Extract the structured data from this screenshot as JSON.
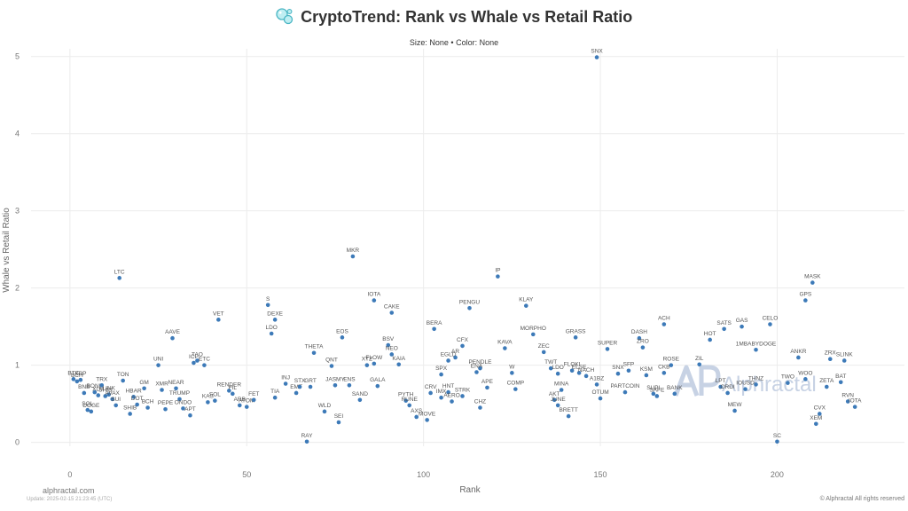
{
  "header": {
    "title": "CryptoTrend: Rank vs Whale vs Retail Ratio",
    "subtitle": "Size: None • Color: None"
  },
  "footer": {
    "left": "alphractal.com",
    "left_small": "Update: 2025-02-15 21:23:45 (UTC)",
    "right": "© Alphractal All rights reserved"
  },
  "watermark": {
    "text": "Alphractal"
  },
  "colors": {
    "point": "#3d7ab8",
    "grid": "#ececec",
    "watermark": "#c7d2e4"
  },
  "chart_data": {
    "type": "scatter",
    "title": "CryptoTrend: Rank vs Whale vs Retail Ratio",
    "subtitle": "Size: None • Color: None",
    "xlabel": "Rank",
    "ylabel": "Whale vs Retail Ratio",
    "xlim": [
      -11,
      236
    ],
    "ylim": [
      -0.05,
      5.1
    ],
    "xticks": [
      0,
      50,
      100,
      150,
      200
    ],
    "yticks": [
      0,
      1,
      2,
      3,
      4,
      5
    ],
    "grid": true,
    "points": [
      {
        "label": "BTC",
        "x": 1,
        "y": 0.82
      },
      {
        "label": "BCH",
        "x": 2,
        "y": 0.79
      },
      {
        "label": "XRP",
        "x": 3,
        "y": 0.81
      },
      {
        "label": "BNB",
        "x": 4,
        "y": 0.64
      },
      {
        "label": "SOL",
        "x": 5,
        "y": 0.42
      },
      {
        "label": "DOGE",
        "x": 6,
        "y": 0.4
      },
      {
        "label": "BONK",
        "x": 7,
        "y": 0.65
      },
      {
        "label": "XLM",
        "x": 8,
        "y": 0.61
      },
      {
        "label": "TRX",
        "x": 9,
        "y": 0.74
      },
      {
        "label": "SHIB",
        "x": 10,
        "y": 0.6
      },
      {
        "label": "LINK",
        "x": 11,
        "y": 0.62
      },
      {
        "label": "AVAX",
        "x": 12,
        "y": 0.56
      },
      {
        "label": "SUI",
        "x": 13,
        "y": 0.48
      },
      {
        "label": "LTC",
        "x": 14,
        "y": 2.13
      },
      {
        "label": "TON",
        "x": 15,
        "y": 0.8
      },
      {
        "label": "SHIB",
        "x": 17,
        "y": 0.37
      },
      {
        "label": "HBAR",
        "x": 18,
        "y": 0.59
      },
      {
        "label": "DOT",
        "x": 19,
        "y": 0.49
      },
      {
        "label": "GM",
        "x": 21,
        "y": 0.7
      },
      {
        "label": "BCH",
        "x": 22,
        "y": 0.45
      },
      {
        "label": "UNI",
        "x": 25,
        "y": 1.0
      },
      {
        "label": "XMR",
        "x": 26,
        "y": 0.68
      },
      {
        "label": "PEPE",
        "x": 27,
        "y": 0.43
      },
      {
        "label": "AAVE",
        "x": 29,
        "y": 1.35
      },
      {
        "label": "NEAR",
        "x": 30,
        "y": 0.7
      },
      {
        "label": "TRUMP",
        "x": 31,
        "y": 0.56
      },
      {
        "label": "ONDO",
        "x": 32,
        "y": 0.44
      },
      {
        "label": "APT",
        "x": 34,
        "y": 0.35
      },
      {
        "label": "ICP",
        "x": 35,
        "y": 1.03
      },
      {
        "label": "TAO",
        "x": 36,
        "y": 1.06
      },
      {
        "label": "ETC",
        "x": 38,
        "y": 1.0
      },
      {
        "label": "KAS",
        "x": 39,
        "y": 0.52
      },
      {
        "label": "SOL",
        "x": 41,
        "y": 0.54
      },
      {
        "label": "VET",
        "x": 42,
        "y": 1.59
      },
      {
        "label": "RENDER",
        "x": 45,
        "y": 0.67
      },
      {
        "label": "FIL",
        "x": 46,
        "y": 0.63
      },
      {
        "label": "ARB",
        "x": 48,
        "y": 0.48
      },
      {
        "label": "ATOM",
        "x": 50,
        "y": 0.46
      },
      {
        "label": "FET",
        "x": 52,
        "y": 0.55
      },
      {
        "label": "S",
        "x": 56,
        "y": 1.78
      },
      {
        "label": "LDO",
        "x": 57,
        "y": 1.41
      },
      {
        "label": "DEXE",
        "x": 58,
        "y": 1.59
      },
      {
        "label": "TIA",
        "x": 58,
        "y": 0.58
      },
      {
        "label": "INJ",
        "x": 61,
        "y": 0.76
      },
      {
        "label": "EMT",
        "x": 64,
        "y": 0.64
      },
      {
        "label": "STX",
        "x": 65,
        "y": 0.72
      },
      {
        "label": "GRT",
        "x": 68,
        "y": 0.72
      },
      {
        "label": "RAY",
        "x": 67,
        "y": 0.01
      },
      {
        "label": "THETA",
        "x": 69,
        "y": 1.16
      },
      {
        "label": "WLD",
        "x": 72,
        "y": 0.4
      },
      {
        "label": "QNT",
        "x": 74,
        "y": 0.99
      },
      {
        "label": "JASMY",
        "x": 75,
        "y": 0.74
      },
      {
        "label": "ENS",
        "x": 79,
        "y": 0.74
      },
      {
        "label": "SEI",
        "x": 76,
        "y": 0.26
      },
      {
        "label": "EOS",
        "x": 77,
        "y": 1.36
      },
      {
        "label": "MKR",
        "x": 80,
        "y": 2.41
      },
      {
        "label": "SAND",
        "x": 82,
        "y": 0.55
      },
      {
        "label": "XTZ",
        "x": 84,
        "y": 1.0
      },
      {
        "label": "FLOW",
        "x": 86,
        "y": 1.02
      },
      {
        "label": "GALA",
        "x": 87,
        "y": 0.73
      },
      {
        "label": "IOTA",
        "x": 86,
        "y": 1.84
      },
      {
        "label": "CAKE",
        "x": 91,
        "y": 1.68
      },
      {
        "label": "BSV",
        "x": 90,
        "y": 1.26
      },
      {
        "label": "NEO",
        "x": 91,
        "y": 1.14
      },
      {
        "label": "KAIA",
        "x": 93,
        "y": 1.01
      },
      {
        "label": "PYTH",
        "x": 95,
        "y": 0.54
      },
      {
        "label": "RUNE",
        "x": 96,
        "y": 0.48
      },
      {
        "label": "AXS",
        "x": 98,
        "y": 0.33
      },
      {
        "label": "MOVE",
        "x": 101,
        "y": 0.29
      },
      {
        "label": "CRV",
        "x": 102,
        "y": 0.64
      },
      {
        "label": "IMX",
        "x": 105,
        "y": 0.58
      },
      {
        "label": "HNT",
        "x": 107,
        "y": 0.65
      },
      {
        "label": "BERA",
        "x": 103,
        "y": 1.47
      },
      {
        "label": "SPX",
        "x": 105,
        "y": 0.88
      },
      {
        "label": "EGLD",
        "x": 107,
        "y": 1.06
      },
      {
        "label": "AR",
        "x": 109,
        "y": 1.1
      },
      {
        "label": "CFX",
        "x": 111,
        "y": 1.25
      },
      {
        "label": "STRK",
        "x": 111,
        "y": 0.6
      },
      {
        "label": "AERO",
        "x": 108,
        "y": 0.53
      },
      {
        "label": "PENGU",
        "x": 113,
        "y": 1.74
      },
      {
        "label": "PENDLE",
        "x": 116,
        "y": 0.96
      },
      {
        "label": "ENA",
        "x": 115,
        "y": 0.91
      },
      {
        "label": "APE",
        "x": 118,
        "y": 0.71
      },
      {
        "label": "CHZ",
        "x": 116,
        "y": 0.45
      },
      {
        "label": "IP",
        "x": 121,
        "y": 2.15
      },
      {
        "label": "KAVA",
        "x": 123,
        "y": 1.22
      },
      {
        "label": "W",
        "x": 125,
        "y": 0.9
      },
      {
        "label": "COMP",
        "x": 126,
        "y": 0.69
      },
      {
        "label": "KLAY",
        "x": 129,
        "y": 1.77
      },
      {
        "label": "MORPHO",
        "x": 131,
        "y": 1.4
      },
      {
        "label": "ZEC",
        "x": 134,
        "y": 1.17
      },
      {
        "label": "TWT",
        "x": 136,
        "y": 0.96
      },
      {
        "label": "LDO",
        "x": 138,
        "y": 0.89
      },
      {
        "label": "MINA",
        "x": 139,
        "y": 0.68
      },
      {
        "label": "AKT",
        "x": 137,
        "y": 0.55
      },
      {
        "label": "JUNE",
        "x": 138,
        "y": 0.48
      },
      {
        "label": "GRASS",
        "x": 143,
        "y": 1.36
      },
      {
        "label": "FLOKI",
        "x": 142,
        "y": 0.93
      },
      {
        "label": "ELSE",
        "x": 144,
        "y": 0.9
      },
      {
        "label": "NACH",
        "x": 146,
        "y": 0.86
      },
      {
        "label": "BRETT",
        "x": 141,
        "y": 0.34
      },
      {
        "label": "A1BZ",
        "x": 149,
        "y": 0.75
      },
      {
        "label": "OTUM",
        "x": 150,
        "y": 0.57
      },
      {
        "label": "SNX",
        "x": 149,
        "y": 4.99
      },
      {
        "label": "SUPER",
        "x": 152,
        "y": 1.21
      },
      {
        "label": "SNX",
        "x": 155,
        "y": 0.89
      },
      {
        "label": "SFP",
        "x": 158,
        "y": 0.93
      },
      {
        "label": "PARTCOIN",
        "x": 157,
        "y": 0.65
      },
      {
        "label": "DASH",
        "x": 161,
        "y": 1.35
      },
      {
        "label": "ZRO",
        "x": 162,
        "y": 1.23
      },
      {
        "label": "KSM",
        "x": 163,
        "y": 0.87
      },
      {
        "label": "SUPI",
        "x": 165,
        "y": 0.63
      },
      {
        "label": "SAFE",
        "x": 166,
        "y": 0.6
      },
      {
        "label": "ACH",
        "x": 168,
        "y": 1.53
      },
      {
        "label": "ROSE",
        "x": 170,
        "y": 1.0
      },
      {
        "label": "CKB",
        "x": 168,
        "y": 0.9
      },
      {
        "label": "BANK",
        "x": 171,
        "y": 0.63
      },
      {
        "label": "ZIL",
        "x": 178,
        "y": 1.01
      },
      {
        "label": "HOT",
        "x": 181,
        "y": 1.33
      },
      {
        "label": "SATS",
        "x": 185,
        "y": 1.47
      },
      {
        "label": "GAS",
        "x": 190,
        "y": 1.5
      },
      {
        "label": "1MBABYDOGE",
        "x": 194,
        "y": 1.2
      },
      {
        "label": "CELO",
        "x": 198,
        "y": 1.53
      },
      {
        "label": "LPT",
        "x": 184,
        "y": 0.72
      },
      {
        "label": "ORDI",
        "x": 186,
        "y": 0.64
      },
      {
        "label": "MEW",
        "x": 188,
        "y": 0.41
      },
      {
        "label": "IOUSD",
        "x": 191,
        "y": 0.69
      },
      {
        "label": "THNZ",
        "x": 194,
        "y": 0.75
      },
      {
        "label": "SC",
        "x": 200,
        "y": 0.01
      },
      {
        "label": "TWO",
        "x": 203,
        "y": 0.77
      },
      {
        "label": "WOO",
        "x": 208,
        "y": 0.82
      },
      {
        "label": "ANKR",
        "x": 206,
        "y": 1.1
      },
      {
        "label": "MASK",
        "x": 210,
        "y": 2.07
      },
      {
        "label": "GPS",
        "x": 208,
        "y": 1.84
      },
      {
        "label": "CVX",
        "x": 212,
        "y": 0.37
      },
      {
        "label": "XEM",
        "x": 211,
        "y": 0.24
      },
      {
        "label": "ZETA",
        "x": 214,
        "y": 0.72
      },
      {
        "label": "ZRX",
        "x": 215,
        "y": 1.08
      },
      {
        "label": "SLINK",
        "x": 219,
        "y": 1.06
      },
      {
        "label": "BAT",
        "x": 218,
        "y": 0.78
      },
      {
        "label": "RVN",
        "x": 220,
        "y": 0.53
      },
      {
        "label": "IOTA",
        "x": 222,
        "y": 0.46
      }
    ]
  }
}
